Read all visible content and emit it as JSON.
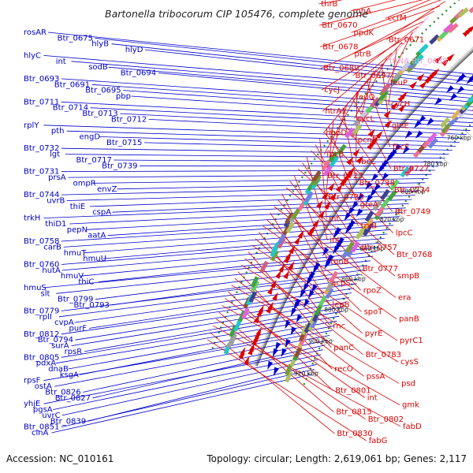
{
  "title": "Bartonella tribocorum CIP 105476, complete genome",
  "footer": {
    "accession": "Accession: NC_010161",
    "summary": "Topology: circular; Length: 2,619,061 bp; Genes: 2,117"
  },
  "colors": {
    "forward_strand": "#0000cc",
    "reverse_strand": "#dd0000",
    "trna": "#ee99cc",
    "dotted_track": "#228822",
    "backbone": "#999999"
  },
  "kbp_markers": [
    "720 kbp",
    "740 kbp",
    "760 kbp",
    "780 kbp",
    "800 kbp",
    "820 kbp",
    "840 kbp",
    "860 kbp",
    "880 kbp",
    "900 kbp",
    "920 kbp"
  ],
  "left_genes": [
    "rosAR",
    "Btr_0675",
    "hlyB",
    "hlyD",
    "hlyC",
    "int",
    "sodB",
    "Btr_0694",
    "Btr_0693",
    "Btr_0691",
    "Btr_0695",
    "pbp",
    "Btr_0711",
    "Btr_0714",
    "Btr_0713",
    "Btr_0712",
    "rplY",
    "pth",
    "engD",
    "Btr_0715",
    "Btr_0732",
    "lgt",
    "Btr_0717",
    "Btr_0739",
    "Btr_0731",
    "prsA",
    "ompR",
    "envZ",
    "Btr_0744",
    "uvrB",
    "thiE",
    "cspA",
    "trkH",
    "thiD1",
    "pepN",
    "aatA",
    "Btr_0758",
    "carB",
    "hmuT",
    "hmuU",
    "Btr_0760",
    "hutA",
    "hmuV",
    "thiC",
    "hmuS",
    "slt",
    "Btr_0799",
    "Btr_0793",
    "Btr_0779",
    "rplI",
    "cvpA",
    "purF",
    "Btr_0812",
    "Btr_0794",
    "surA",
    "rpsR",
    "Btr_0805",
    "pdxA",
    "dnaB",
    "ksgA",
    "rpsF",
    "ostA",
    "Btr_0826",
    "Btr_0827",
    "yhjE",
    "pgsA",
    "uvrC",
    "Btr_0839",
    "Btr_0851",
    "cinA"
  ],
  "right_genes": [
    "thrB",
    "rnhA",
    "ccrM",
    "Btr_0670",
    "ppdK",
    "Btr_0671",
    "Btr_0678",
    "ptrB",
    "tRNA-Btr_0688",
    "Btr_0689",
    "Btr_0697",
    "feuP",
    "cycJ",
    "feuQ",
    "cycH",
    "htrA1",
    "cycL",
    "glnE",
    "hbpD",
    "pcnB",
    "fbcF",
    "fbcB",
    "fbcC",
    "Btr_0727",
    "Btr_0723",
    "Btr_0738",
    "Btr_0734",
    "Btr_0735",
    "greA",
    "Btr_0749",
    "int",
    "trxB",
    "lpcC",
    "int",
    "Btr_0757",
    "Btr_0768",
    "tonB",
    "Btr_0777",
    "smpB",
    "acpS",
    "rpoZ",
    "era",
    "lepB",
    "spoT",
    "panB",
    "rnc",
    "pyrE",
    "pyrC1",
    "panC",
    "Btr_0783",
    "cysS",
    "recO",
    "pssA",
    "psd",
    "Btr_0801",
    "int",
    "gmk",
    "Btr_0815",
    "Btr_0802",
    "fabD",
    "Btr_0830",
    "fabG"
  ]
}
